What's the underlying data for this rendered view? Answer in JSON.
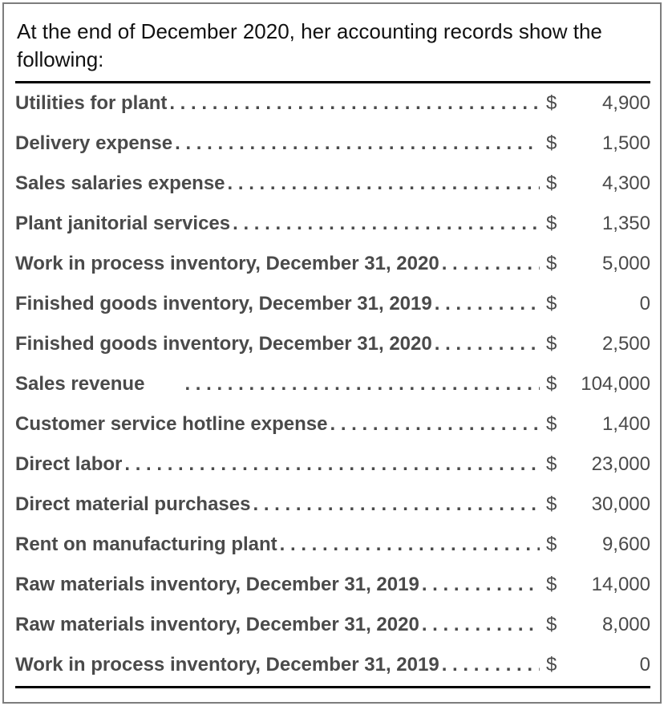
{
  "header": {
    "text": "At the end of December 2020, her accounting records show the following:"
  },
  "table": {
    "currency_symbol": "$",
    "rows": [
      {
        "label": "Utilities for plant",
        "amount": "4,900"
      },
      {
        "label": "Delivery expense",
        "amount": "1,500"
      },
      {
        "label": "Sales salaries expense",
        "amount": "4,300"
      },
      {
        "label": "Plant janitorial services",
        "amount": "1,350"
      },
      {
        "label": "Work in process inventory, December 31, 2020",
        "amount": "5,000"
      },
      {
        "label": "Finished goods inventory, December 31, 2019",
        "amount": "0"
      },
      {
        "label": "Finished goods inventory, December 31, 2020",
        "amount": "2,500"
      },
      {
        "label": "Sales revenue",
        "amount": "104,000",
        "dots_gap": true
      },
      {
        "label": "Customer service hotline expense",
        "amount": "1,400"
      },
      {
        "label": "Direct labor",
        "amount": "23,000"
      },
      {
        "label": "Direct material purchases",
        "amount": "30,000"
      },
      {
        "label": "Rent on manufacturing plant",
        "amount": "9,600"
      },
      {
        "label": "Raw materials inventory, December 31, 2019",
        "amount": "14,000"
      },
      {
        "label": "Raw materials inventory, December 31, 2020",
        "amount": "8,000"
      },
      {
        "label": "Work in process inventory, December 31, 2019",
        "amount": "0"
      }
    ]
  },
  "theme": {
    "header_color": "#111111",
    "label_color": "#4a4a4a",
    "value_color": "#4a4a4a",
    "rule_color": "#000000",
    "border_color": "#7d7d7d",
    "background": "#ffffff"
  }
}
